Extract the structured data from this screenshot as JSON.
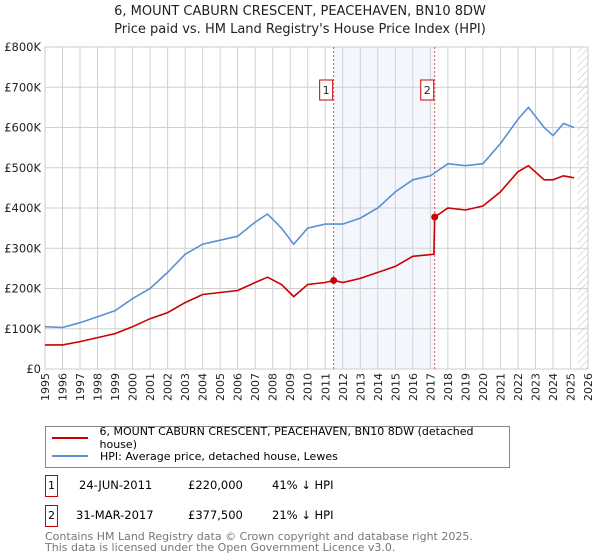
{
  "title": "6, MOUNT CABURN CRESCENT, PEACEHAVEN, BN10 8DW",
  "subtitle": "Price paid vs. HM Land Registry's House Price Index (HPI)",
  "chart_data": {
    "type": "line",
    "ylim": [
      0,
      800000
    ],
    "xlim": [
      1995,
      2026
    ],
    "yticks": [
      0,
      100000,
      200000,
      300000,
      400000,
      500000,
      600000,
      700000,
      800000
    ],
    "ytick_labels": [
      "£0",
      "£100K",
      "£200K",
      "£300K",
      "£400K",
      "£500K",
      "£600K",
      "£700K",
      "£800K"
    ],
    "xticks": [
      "1995",
      "1996",
      "1997",
      "1998",
      "1999",
      "2000",
      "2001",
      "2002",
      "2003",
      "2004",
      "2005",
      "2006",
      "2007",
      "2008",
      "2009",
      "2010",
      "2011",
      "2012",
      "2013",
      "2014",
      "2015",
      "2016",
      "2017",
      "2018",
      "2019",
      "2020",
      "2021",
      "2022",
      "2023",
      "2024",
      "2025",
      "2026"
    ],
    "grid": true,
    "series": [
      {
        "name": "6, MOUNT CABURN CRESCENT, PEACEHAVEN, BN10 8DW (detached house)",
        "color": "#cc0000",
        "x": [
          1995,
          1996,
          1997,
          1998,
          1999,
          2000,
          2001,
          2002,
          2003,
          2004,
          2005,
          2006,
          2007,
          2007.7,
          2008.5,
          2009.2,
          2010,
          2011,
          2011.48,
          2012,
          2013,
          2014,
          2015,
          2016,
          2017.2,
          2017.25,
          2018,
          2019,
          2020,
          2021,
          2022,
          2022.6,
          2023.5,
          2024,
          2024.6,
          2025.2
        ],
        "y": [
          60000,
          60000,
          68000,
          78000,
          88000,
          105000,
          125000,
          140000,
          165000,
          185000,
          190000,
          195000,
          215000,
          228000,
          210000,
          180000,
          210000,
          215000,
          220000,
          215000,
          225000,
          240000,
          255000,
          280000,
          285000,
          377500,
          400000,
          395000,
          405000,
          440000,
          490000,
          505000,
          470000,
          470000,
          480000,
          475000
        ]
      },
      {
        "name": "HPI: Average price, detached house, Lewes",
        "color": "#5b8fd6",
        "x": [
          1995,
          1996,
          1997,
          1998,
          1999,
          2000,
          2001,
          2002,
          2003,
          2004,
          2005,
          2006,
          2007,
          2007.7,
          2008.5,
          2009.2,
          2010,
          2011,
          2012,
          2013,
          2014,
          2015,
          2016,
          2017,
          2018,
          2019,
          2020,
          2021,
          2022,
          2022.6,
          2023.5,
          2024,
          2024.6,
          2025.2
        ],
        "y": [
          105000,
          103000,
          115000,
          130000,
          145000,
          175000,
          200000,
          240000,
          285000,
          310000,
          320000,
          330000,
          365000,
          385000,
          350000,
          310000,
          350000,
          360000,
          360000,
          375000,
          400000,
          440000,
          470000,
          480000,
          510000,
          505000,
          510000,
          560000,
          620000,
          650000,
          600000,
          580000,
          610000,
          600000
        ]
      }
    ],
    "annotations": [
      {
        "label": "1",
        "x": 2011.48,
        "y": 220000
      },
      {
        "label": "2",
        "x": 2017.25,
        "y": 377500
      }
    ],
    "legend_position": "bottom"
  },
  "sales": [
    {
      "num": "1",
      "date": "24-JUN-2011",
      "price": "£220,000",
      "hpi": "41% ↓ HPI"
    },
    {
      "num": "2",
      "date": "31-MAR-2017",
      "price": "£377,500",
      "hpi": "21% ↓ HPI"
    }
  ],
  "footer": [
    "Contains HM Land Registry data © Crown copyright and database right 2025.",
    "This data is licensed under the Open Government Licence v3.0."
  ]
}
